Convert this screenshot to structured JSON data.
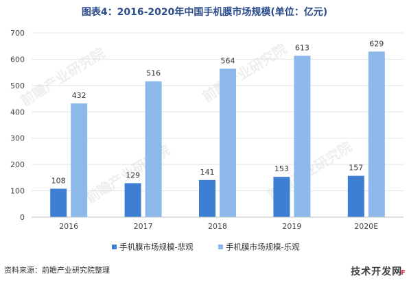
{
  "chart_data": {
    "type": "bar",
    "title": "图表4：2016-2020年中国手机膜市场规模(单位：亿元)",
    "xlabel": "",
    "ylabel": "",
    "categories": [
      "2016",
      "2017",
      "2018",
      "2019",
      "2020E"
    ],
    "series": [
      {
        "name": "手机膜市场规模-悲观",
        "values": [
          108,
          129,
          141,
          153,
          157
        ],
        "color": "#3e7fd4"
      },
      {
        "name": "手机膜市场规模-乐观",
        "values": [
          432,
          516,
          564,
          613,
          629
        ],
        "color": "#8cb9ea"
      }
    ],
    "ylim": [
      0,
      700
    ],
    "yticks": [
      0,
      100,
      200,
      300,
      400,
      500,
      600,
      700
    ],
    "grid": true,
    "legend_position": "bottom",
    "data_labels": true
  },
  "source": "资料来源：前瞻产业研究院整理",
  "watermark": "前瞻产业研究院",
  "footer_logo": "技术开发网"
}
